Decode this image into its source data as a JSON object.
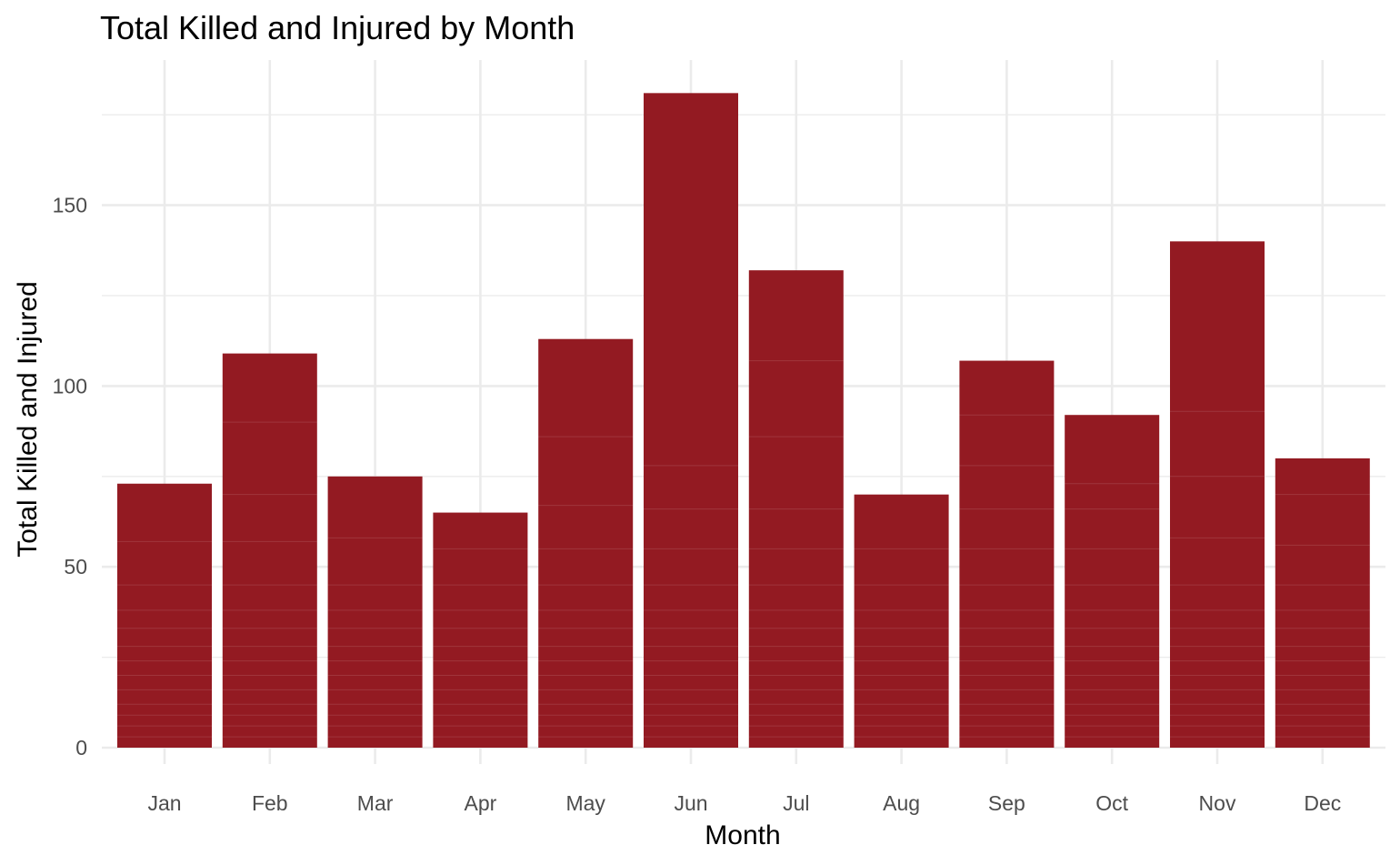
{
  "chart_data": {
    "type": "bar",
    "title": "Total Killed and Injured by Month",
    "xlabel": "Month",
    "ylabel": "Total Killed and Injured",
    "categories": [
      "Jan",
      "Feb",
      "Mar",
      "Apr",
      "May",
      "Jun",
      "Jul",
      "Aug",
      "Sep",
      "Oct",
      "Nov",
      "Dec"
    ],
    "values": [
      73,
      109,
      75,
      65,
      113,
      181,
      132,
      70,
      107,
      92,
      140,
      80
    ],
    "ylim": [
      0,
      190
    ],
    "yticks": [
      0,
      50,
      100,
      150
    ],
    "grid": true,
    "legend": "none",
    "bar_color": "#931A22",
    "stacked_segment_tops": [
      [
        3,
        6,
        9,
        12,
        16,
        20,
        24,
        28,
        33,
        38,
        45,
        57,
        73
      ],
      [
        3,
        6,
        9,
        12,
        16,
        20,
        24,
        28,
        33,
        38,
        45,
        57,
        70,
        90,
        109
      ],
      [
        3,
        6,
        9,
        12,
        16,
        20,
        24,
        28,
        33,
        38,
        45,
        58,
        75
      ],
      [
        3,
        6,
        9,
        12,
        16,
        20,
        24,
        28,
        33,
        38,
        45,
        55,
        65
      ],
      [
        3,
        6,
        9,
        12,
        16,
        20,
        24,
        28,
        33,
        38,
        45,
        55,
        67,
        86,
        113
      ],
      [
        3,
        6,
        9,
        12,
        16,
        20,
        24,
        28,
        33,
        38,
        45,
        55,
        66,
        78,
        181
      ],
      [
        3,
        6,
        9,
        12,
        16,
        20,
        24,
        28,
        33,
        38,
        45,
        55,
        66,
        86,
        107,
        132
      ],
      [
        3,
        6,
        9,
        12,
        16,
        20,
        24,
        28,
        33,
        38,
        45,
        55,
        70
      ],
      [
        3,
        6,
        9,
        12,
        16,
        20,
        24,
        28,
        33,
        38,
        45,
        55,
        66,
        78,
        92,
        107
      ],
      [
        3,
        6,
        9,
        12,
        16,
        20,
        24,
        28,
        33,
        38,
        45,
        55,
        66,
        73,
        92
      ],
      [
        3,
        6,
        9,
        12,
        16,
        20,
        24,
        28,
        33,
        38,
        45,
        58,
        75,
        93,
        140
      ],
      [
        3,
        6,
        9,
        12,
        16,
        20,
        24,
        28,
        33,
        38,
        45,
        56,
        70,
        80
      ]
    ]
  }
}
